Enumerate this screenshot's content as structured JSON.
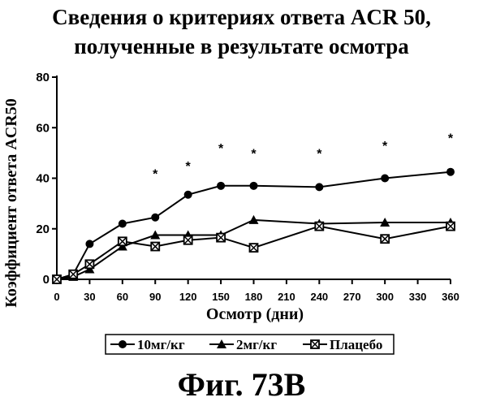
{
  "title_line1": "Сведения о критериях ответа ACR 50,",
  "title_line2": "полученные в результате осмотра",
  "figure_label": "Фиг. 73B",
  "chart_data": {
    "type": "line",
    "xlabel": "Осмотр (дни)",
    "ylabel": "Коэффициент ответа ACR50",
    "xlim": [
      0,
      360
    ],
    "ylim": [
      0,
      80
    ],
    "xticks": [
      0,
      30,
      60,
      90,
      120,
      150,
      180,
      210,
      240,
      270,
      300,
      330,
      360
    ],
    "yticks": [
      0,
      20,
      40,
      60,
      80
    ],
    "legend_position": "bottom-center",
    "grid": false,
    "series": [
      {
        "name": "10мг/кг",
        "marker": "circle",
        "x": [
          0,
          15,
          30,
          60,
          90,
          120,
          150,
          180,
          240,
          300,
          360
        ],
        "y": [
          0,
          2,
          14,
          22,
          24.5,
          33.5,
          37,
          37,
          36.5,
          40,
          42.5
        ]
      },
      {
        "name": "2мг/кг",
        "marker": "triangle",
        "x": [
          0,
          15,
          30,
          60,
          90,
          120,
          150,
          180,
          240,
          300,
          360
        ],
        "y": [
          0,
          1,
          4,
          13,
          17.5,
          17.5,
          17.5,
          23.5,
          22,
          22.5,
          22.5
        ]
      },
      {
        "name": "Плацебо",
        "marker": "square-x",
        "x": [
          0,
          15,
          30,
          60,
          90,
          120,
          150,
          180,
          240,
          300,
          360
        ],
        "y": [
          0,
          2,
          6,
          15,
          13,
          15.5,
          16.5,
          12.5,
          21,
          16,
          21
        ]
      }
    ],
    "annotations": [
      {
        "text": "*",
        "x": 90,
        "y": 42
      },
      {
        "text": "*",
        "x": 120,
        "y": 45
      },
      {
        "text": "*",
        "x": 150,
        "y": 52
      },
      {
        "text": "*",
        "x": 180,
        "y": 50
      },
      {
        "text": "*",
        "x": 240,
        "y": 50
      },
      {
        "text": "*",
        "x": 300,
        "y": 53
      },
      {
        "text": "*",
        "x": 360,
        "y": 56
      }
    ]
  }
}
